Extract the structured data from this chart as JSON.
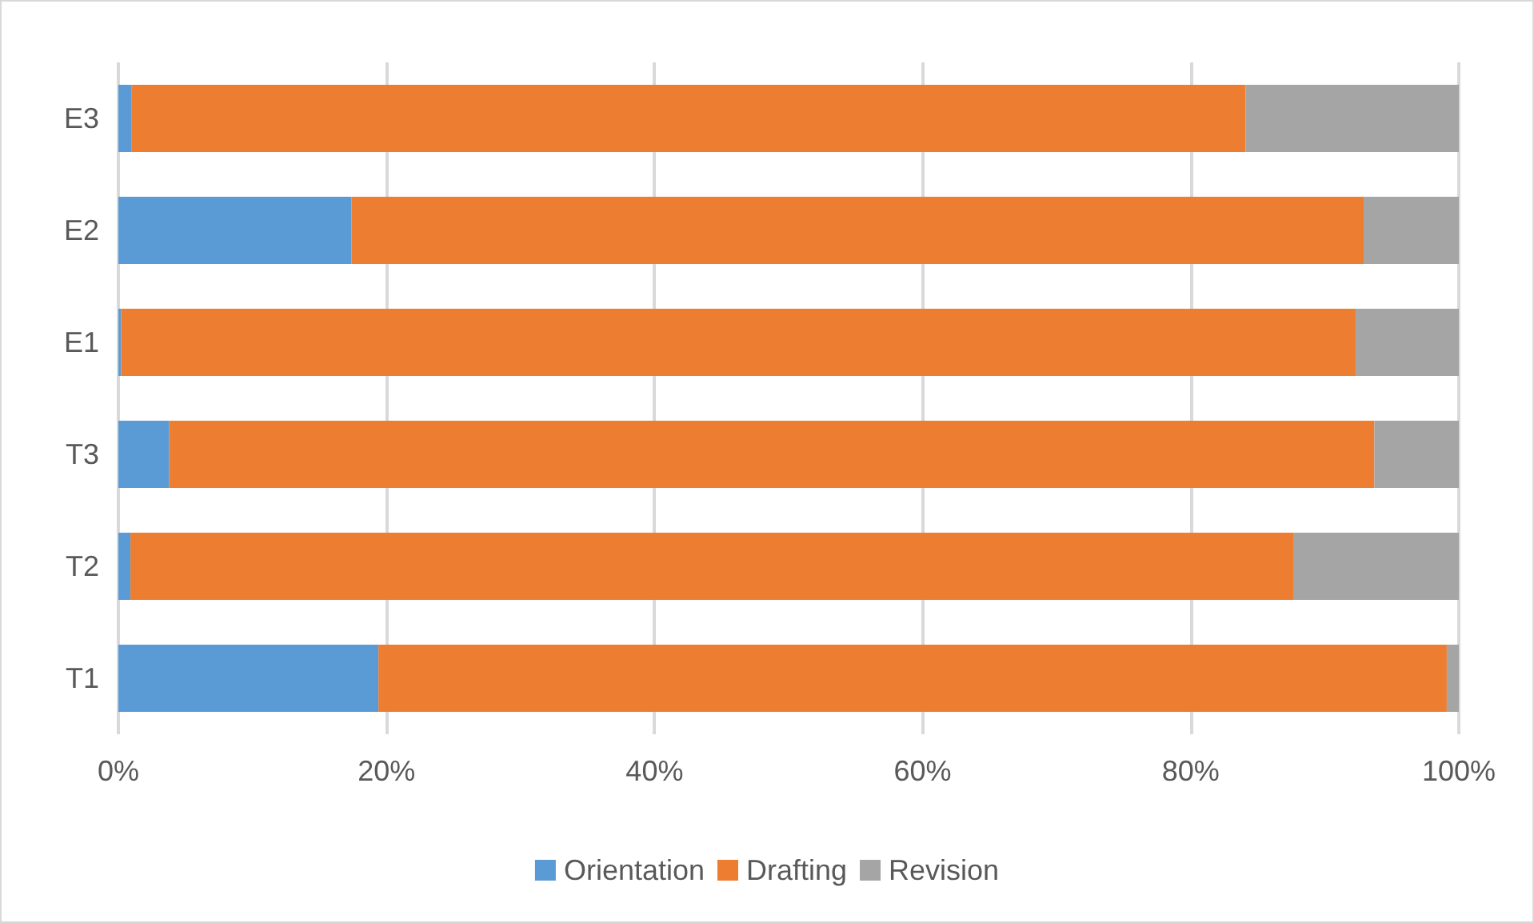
{
  "chart_data": {
    "type": "bar",
    "orientation": "horizontal",
    "stacked": true,
    "categories": [
      "E3",
      "E2",
      "E1",
      "T3",
      "T2",
      "T1"
    ],
    "series": [
      {
        "name": "Orientation",
        "color": "#5b9bd5",
        "values": [
          1.0,
          17.4,
          0.2,
          3.8,
          0.9,
          19.4
        ]
      },
      {
        "name": "Drafting",
        "color": "#ed7d31",
        "values": [
          83.1,
          75.5,
          92.1,
          89.9,
          86.8,
          79.7
        ]
      },
      {
        "name": "Revision",
        "color": "#a5a5a5",
        "values": [
          15.9,
          7.1,
          7.7,
          6.3,
          12.3,
          0.9
        ]
      }
    ],
    "xlim": [
      0,
      100
    ],
    "xticks": [
      {
        "value": 0,
        "label": "0%"
      },
      {
        "value": 20,
        "label": "20%"
      },
      {
        "value": 40,
        "label": "40%"
      },
      {
        "value": 60,
        "label": "60%"
      },
      {
        "value": 80,
        "label": "80%"
      },
      {
        "value": 100,
        "label": "100%"
      }
    ],
    "grid": "x",
    "legend": "bottom"
  }
}
